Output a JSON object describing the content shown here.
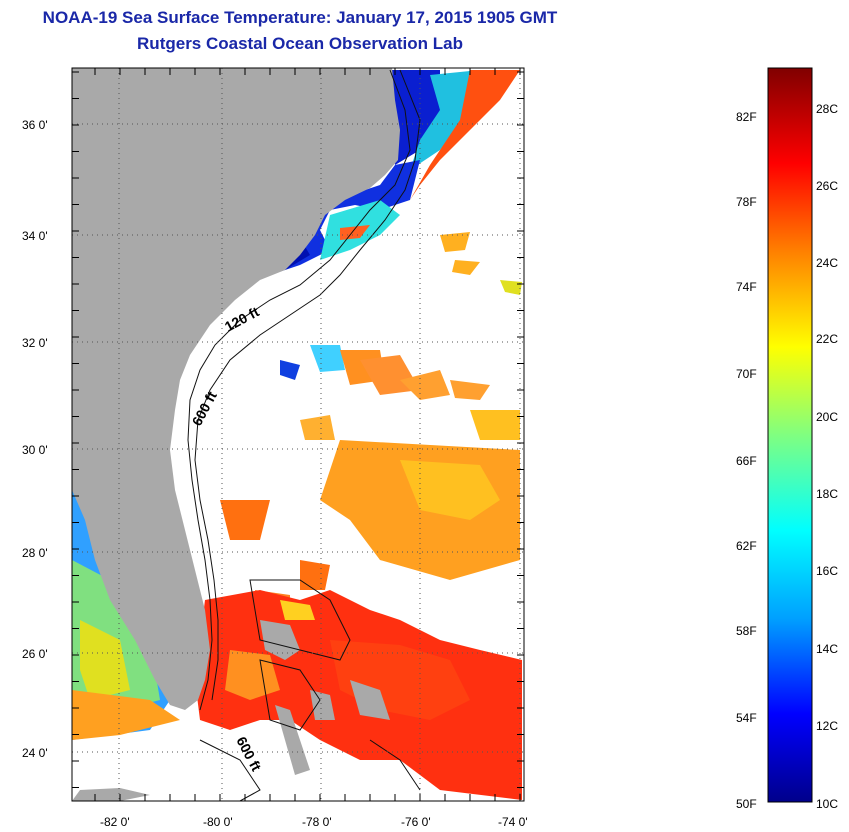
{
  "title": "NOAA-19 Sea Surface Temperature:  January 17, 2015 1905 GMT",
  "subtitle": "Rutgers Coastal Ocean Observation Lab",
  "map": {
    "lat_labels": [
      "36 0'",
      "34 0'",
      "32 0'",
      "30 0'",
      "28 0'",
      "26 0'",
      "24 0'"
    ],
    "lon_labels": [
      "-82 0'",
      "-80 0'",
      "-78 0'",
      "-76 0'",
      "-74 0'"
    ],
    "contour_labels": {
      "c120": "120 ft",
      "c600a": "600 ft",
      "c600b": "600 ft"
    },
    "colors": {
      "land": "#a9a9a9",
      "cloud": "#ffffff",
      "grid": "#555555"
    }
  },
  "colorbar": {
    "f_labels": [
      "82F",
      "78F",
      "74F",
      "70F",
      "66F",
      "62F",
      "58F",
      "54F",
      "50F"
    ],
    "c_labels": [
      "28C",
      "26C",
      "24C",
      "22C",
      "20C",
      "18C",
      "16C",
      "14C",
      "12C",
      "10C"
    ],
    "colors": [
      "#00008b",
      "#0000ff",
      "#00a0ff",
      "#00ffff",
      "#80ff80",
      "#ffff00",
      "#ff8000",
      "#ff0000",
      "#800000"
    ]
  }
}
